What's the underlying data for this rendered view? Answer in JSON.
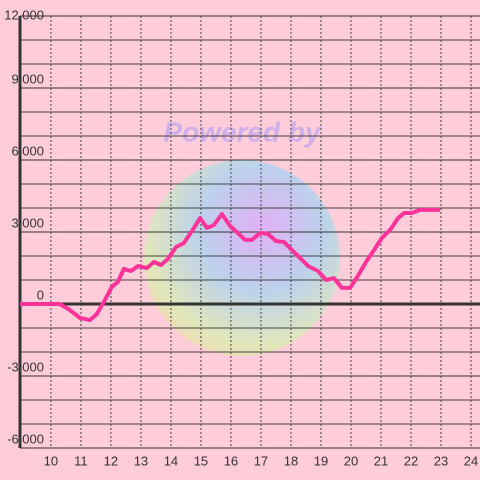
{
  "chart_data": {
    "type": "line",
    "annotation": "Powered by",
    "x": [
      8.97,
      10.3,
      10.63,
      10.97,
      11.3,
      11.53,
      11.8,
      12.03,
      12.23,
      12.43,
      12.67,
      12.9,
      13.2,
      13.43,
      13.67,
      13.9,
      14.17,
      14.43,
      14.7,
      14.97,
      15.2,
      15.43,
      15.7,
      15.97,
      16.23,
      16.47,
      16.7,
      16.97,
      17.23,
      17.5,
      17.77,
      18.03,
      18.3,
      18.57,
      18.9,
      19.17,
      19.43,
      19.7,
      19.97,
      20.23,
      20.5,
      20.77,
      21.03,
      21.3,
      21.57,
      21.77,
      22.03,
      22.3,
      22.97
    ],
    "series": [
      {
        "color": "#ff3399",
        "values": [
          0,
          0,
          -250,
          -580,
          -670,
          -420,
          170,
          710,
          920,
          1460,
          1375,
          1580,
          1500,
          1750,
          1625,
          1875,
          2375,
          2540,
          3040,
          3580,
          3170,
          3290,
          3750,
          3250,
          2960,
          2670,
          2670,
          2960,
          2920,
          2625,
          2580,
          2250,
          1920,
          1580,
          1375,
          1000,
          1080,
          670,
          670,
          1170,
          1750,
          2250,
          2750,
          3080,
          3580,
          3790,
          3790,
          3920,
          3920
        ]
      }
    ],
    "xlim": [
      8.97,
      24.3
    ],
    "xticks": [
      10,
      11,
      12,
      13,
      14,
      15,
      16,
      17,
      18,
      19,
      20,
      21,
      22,
      23,
      24
    ],
    "ylim": [
      -6000,
      12000
    ],
    "yticks": [
      {
        "value": 12000,
        "label": "12,000"
      },
      {
        "value": 9000,
        "label": "9,000"
      },
      {
        "value": 6000,
        "label": "6,000"
      },
      {
        "value": 3000,
        "label": "3,000"
      },
      0,
      {
        "value": -3000,
        "label": "-3,000"
      },
      {
        "value": -6000,
        "label": "-6,000"
      }
    ],
    "yminorticks": [
      11000,
      10000,
      8000,
      7000,
      5000,
      4000,
      2000,
      1000,
      -1000,
      -2000,
      -4000,
      -5000
    ],
    "grid": true
  }
}
